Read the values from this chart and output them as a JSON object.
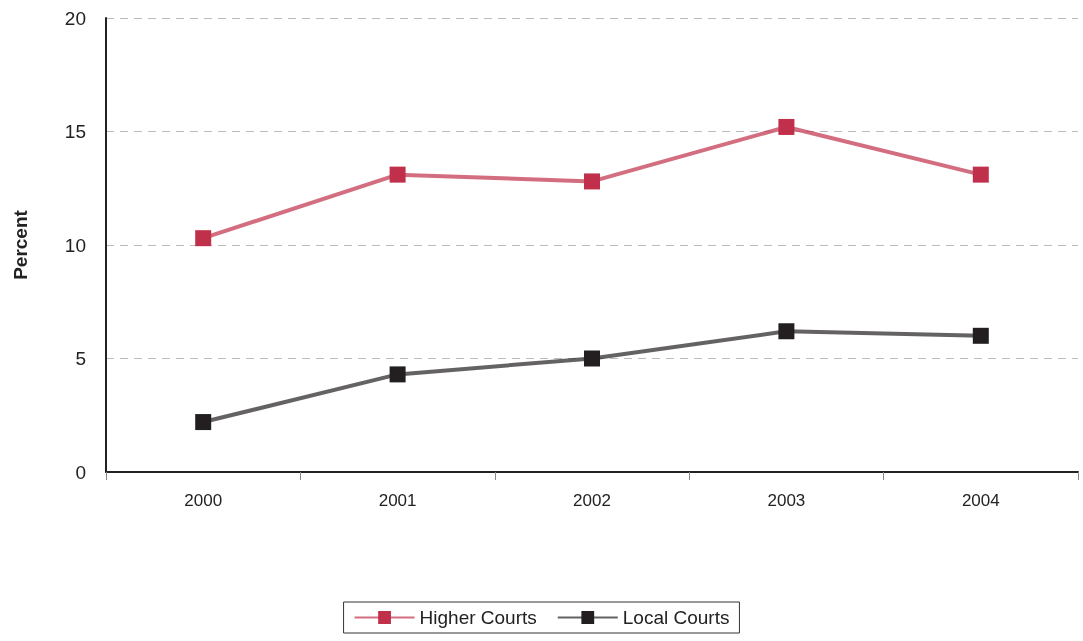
{
  "chart_data": {
    "type": "line",
    "ylabel": "Percent",
    "categories": [
      "2000",
      "2001",
      "2002",
      "2003",
      "2004"
    ],
    "series": [
      {
        "name": "Higher Courts",
        "color": "#c0304a",
        "values": [
          10.3,
          13.1,
          12.8,
          15.2,
          13.1
        ]
      },
      {
        "name": "Local Courts",
        "color": "#231f20",
        "values": [
          2.2,
          4.3,
          5.0,
          6.2,
          6.0
        ]
      }
    ],
    "ylim": [
      0,
      20
    ],
    "yticks": [
      0,
      5,
      10,
      15,
      20
    ],
    "grid": "y",
    "legend": "bottom",
    "marker": "square",
    "line_style": "solid"
  }
}
